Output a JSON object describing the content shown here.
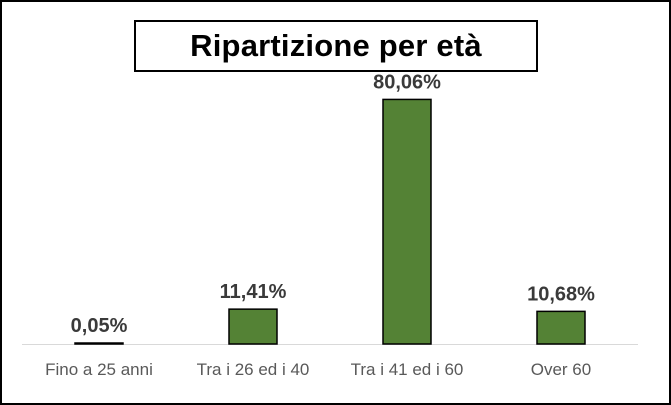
{
  "chart_data": {
    "type": "bar",
    "title": "Ripartizione per età",
    "categories": [
      "Fino a 25 anni",
      "Tra i 26 ed i 40",
      "Tra i 41 ed i 60",
      "Over 60"
    ],
    "values": [
      0.05,
      11.41,
      80.06,
      10.68
    ],
    "value_labels": [
      "0,05%",
      "11,41%",
      "80,06%",
      "10,68%"
    ],
    "ylim": [
      0,
      100
    ],
    "grid": false,
    "legend": "none",
    "bar_color": "#548235",
    "bar_edge_color": "#000000"
  }
}
